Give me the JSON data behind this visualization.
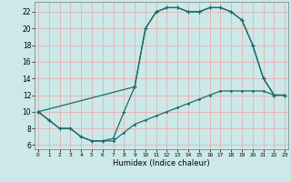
{
  "xlabel": "Humidex (Indice chaleur)",
  "bg_color": "#cce8e8",
  "grid_color": "#e8b0b0",
  "line_color": "#1a6b6b",
  "xlim": [
    -0.3,
    23.3
  ],
  "ylim": [
    5.5,
    23.2
  ],
  "yticks": [
    6,
    8,
    10,
    12,
    14,
    16,
    18,
    20,
    22
  ],
  "xticks": [
    0,
    1,
    2,
    3,
    4,
    5,
    6,
    7,
    8,
    9,
    10,
    11,
    12,
    13,
    14,
    15,
    16,
    17,
    18,
    19,
    20,
    21,
    22,
    23
  ],
  "line1_x": [
    0,
    1,
    2,
    3,
    4,
    5,
    6,
    7,
    8,
    9,
    10,
    11,
    12,
    13,
    14,
    15,
    16,
    17,
    18,
    19,
    20,
    21,
    22,
    23
  ],
  "line1_y": [
    10,
    9,
    8,
    8,
    7,
    6.5,
    6.5,
    6.8,
    10,
    13,
    20,
    22,
    22.5,
    22.5,
    22,
    22,
    22.5,
    22.5,
    22,
    21,
    18,
    14,
    12,
    12
  ],
  "line2_x": [
    0,
    1,
    2,
    3,
    4,
    5,
    6,
    7,
    8,
    9,
    10,
    11,
    12,
    13,
    14,
    15,
    16,
    17,
    18,
    19,
    20,
    21,
    22,
    23
  ],
  "line2_y": [
    10,
    9,
    8,
    8,
    7,
    6.5,
    6.5,
    6.5,
    7.5,
    8.5,
    9,
    9.5,
    10,
    10.5,
    11,
    11.5,
    12,
    12.5,
    12.5,
    12.5,
    12.5,
    12.5,
    12,
    12
  ],
  "line3_x": [
    0,
    9,
    10,
    11,
    12,
    13,
    14,
    15,
    16,
    17,
    18,
    19,
    20,
    21,
    22,
    23
  ],
  "line3_y": [
    10,
    13,
    20,
    22,
    22.5,
    22.5,
    22,
    22,
    22.5,
    22.5,
    22,
    21,
    18,
    14,
    12,
    12
  ]
}
